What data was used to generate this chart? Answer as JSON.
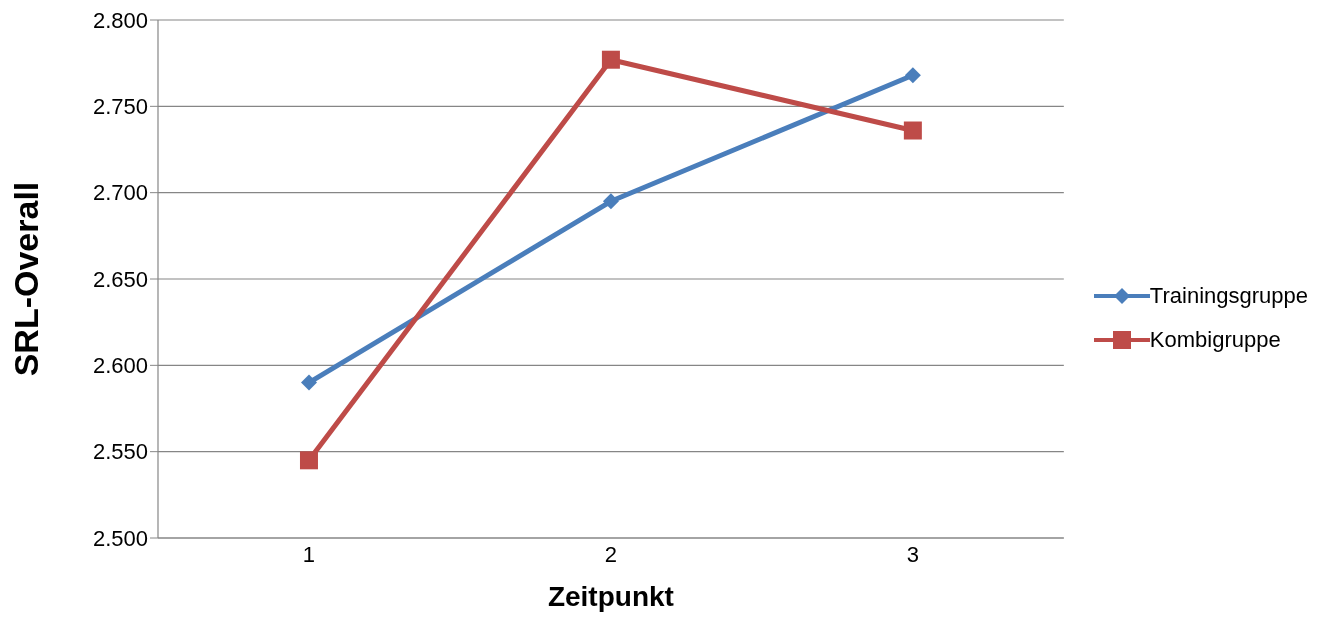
{
  "chart_data": {
    "type": "line",
    "xlabel": "Zeitpunkt",
    "ylabel": "SRL-Overall",
    "categories": [
      "1",
      "2",
      "3"
    ],
    "series": [
      {
        "name": "Trainingsgruppe",
        "color": "#4a7ebb",
        "marker": "diamond",
        "values": [
          2.59,
          2.695,
          2.768
        ]
      },
      {
        "name": "Kombigruppe",
        "color": "#be4b48",
        "marker": "square",
        "values": [
          2.545,
          2.777,
          2.736
        ]
      }
    ],
    "ylim": [
      2.5,
      2.8
    ],
    "yticks": [
      {
        "value": 2.5,
        "label": "2.500"
      },
      {
        "value": 2.55,
        "label": "2.550"
      },
      {
        "value": 2.6,
        "label": "2.600"
      },
      {
        "value": 2.65,
        "label": "2.650"
      },
      {
        "value": 2.7,
        "label": "2.700"
      },
      {
        "value": 2.75,
        "label": "2.750"
      },
      {
        "value": 2.8,
        "label": "2.800"
      }
    ],
    "grid": "y",
    "legend": "right"
  }
}
